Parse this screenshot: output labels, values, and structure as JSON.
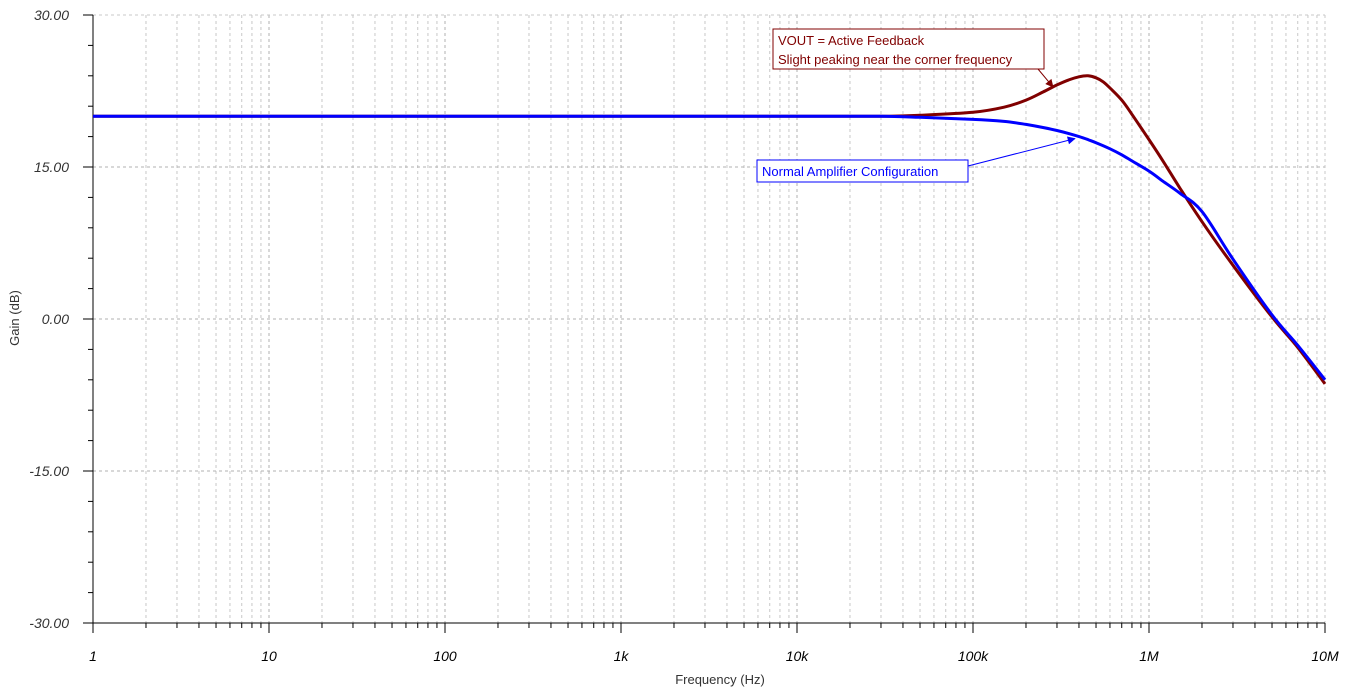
{
  "chart_data": {
    "type": "line",
    "xscale": "log",
    "xlim": [
      1,
      10000000
    ],
    "ylim": [
      -30,
      30
    ],
    "xlabel": "Frequency (Hz)",
    "ylabel": "Gain (dB)",
    "xticks": [
      {
        "value": 1,
        "label": "1"
      },
      {
        "value": 10,
        "label": "10"
      },
      {
        "value": 100,
        "label": "100"
      },
      {
        "value": 1000,
        "label": "1k"
      },
      {
        "value": 10000,
        "label": "10k"
      },
      {
        "value": 100000,
        "label": "100k"
      },
      {
        "value": 1000000,
        "label": "1M"
      },
      {
        "value": 10000000,
        "label": "10M"
      }
    ],
    "yticks": [
      {
        "value": 30,
        "label": "30.00"
      },
      {
        "value": 15,
        "label": "15.00"
      },
      {
        "value": 0,
        "label": "0.00"
      },
      {
        "value": -15,
        "label": "-15.00"
      },
      {
        "value": -30,
        "label": "-30.00"
      }
    ],
    "grid": true,
    "series": [
      {
        "color": "#800000",
        "x": [
          1,
          10,
          100,
          1000,
          10000,
          30000,
          50000,
          100000,
          150000,
          200000,
          250000,
          300000,
          350000,
          400000,
          450000,
          500000,
          550000,
          600000,
          700000,
          800000,
          1000000,
          1200000,
          1500000,
          2000000,
          3000000,
          5000000,
          7000000,
          10000000
        ],
        "y": [
          20,
          20,
          20,
          20,
          20,
          20,
          20.1,
          20.4,
          20.9,
          21.6,
          22.4,
          23.1,
          23.6,
          23.9,
          24.0,
          23.8,
          23.4,
          22.8,
          21.6,
          20.2,
          17.7,
          15.6,
          12.9,
          9.6,
          5.3,
          0.2,
          -2.8,
          -6.4
        ]
      },
      {
        "color": "#0000ff",
        "x": [
          1,
          10,
          100,
          1000,
          10000,
          30000,
          50000,
          100000,
          150000,
          200000,
          250000,
          300000,
          350000,
          400000,
          450000,
          500000,
          600000,
          700000,
          800000,
          1000000,
          1200000,
          1500000,
          2000000,
          3000000,
          5000000,
          7000000,
          10000000
        ],
        "y": [
          20,
          20,
          20,
          20,
          20,
          20,
          19.9,
          19.7,
          19.5,
          19.2,
          18.9,
          18.6,
          18.3,
          18.0,
          17.7,
          17.4,
          16.8,
          16.2,
          15.6,
          14.6,
          13.6,
          12.4,
          10.6,
          5.9,
          0.4,
          -2.6,
          -6.0
        ]
      }
    ],
    "annotations": [
      {
        "lines": [
          "VOUT =  Active Feedback",
          "Slight peaking near the corner frequency"
        ],
        "color": "#800000",
        "box": "#ffffff",
        "border": "#800000",
        "target": {
          "x": 300000,
          "y": 23.1
        }
      },
      {
        "lines": [
          "Normal Amplifier Configuration"
        ],
        "color": "#0000ff",
        "box": "#ffffff",
        "border": "#0000ff",
        "target": {
          "x": 400000,
          "y": 18.0
        }
      }
    ]
  }
}
